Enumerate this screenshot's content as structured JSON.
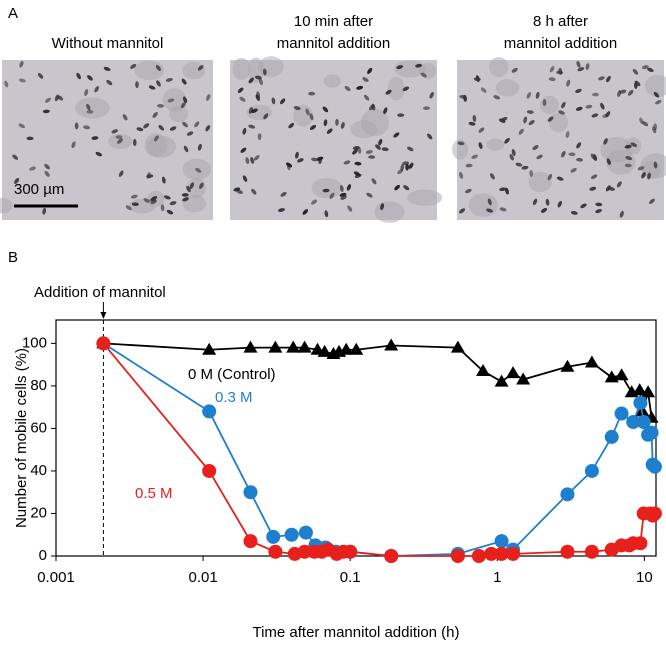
{
  "panel_a": {
    "label": "A",
    "scale_bar": "300 µm",
    "images": [
      {
        "caption": [
          "Without mannitol"
        ]
      },
      {
        "caption": [
          "10 min after",
          "mannitol addition"
        ]
      },
      {
        "caption": [
          "8 h after",
          "mannitol addition"
        ]
      }
    ]
  },
  "chart_data": {
    "type": "line",
    "panel_label": "B",
    "xlabel": "Time after mannitol addition (h)",
    "ylabel": "Number of mobile cells (%)",
    "xscale": "log",
    "xlim": [
      0.001,
      12
    ],
    "ylim": [
      0,
      111
    ],
    "xticks": [
      0.001,
      0.01,
      0.1,
      1,
      10
    ],
    "yticks": [
      0,
      20,
      40,
      60,
      80,
      100
    ],
    "event": {
      "label": "Addition of mannitol",
      "x": 0.0021
    },
    "series": [
      {
        "name": "0 M (Control)",
        "color": "#000000",
        "marker": "triangle",
        "x": [
          0.0021,
          0.011,
          0.021,
          0.031,
          0.041,
          0.049,
          0.06,
          0.067,
          0.077,
          0.084,
          0.094,
          0.11,
          0.19,
          0.54,
          0.8,
          1.07,
          1.28,
          1.5,
          3.0,
          4.4,
          6.0,
          7.0,
          8.2,
          9.3,
          9.7,
          10.6,
          11.2
        ],
        "values": [
          100,
          97,
          98,
          98,
          98,
          98,
          97,
          96,
          95,
          96,
          97,
          97,
          99,
          98,
          87,
          82,
          86,
          83,
          89,
          91,
          84,
          85,
          77,
          78,
          68,
          77,
          65
        ]
      },
      {
        "name": "0.3 M",
        "color": "#1f7fcf",
        "marker": "circle",
        "x": [
          0.0021,
          0.011,
          0.021,
          0.03,
          0.04,
          0.05,
          0.058,
          0.068,
          0.08,
          0.1,
          0.19,
          0.54,
          1.07,
          1.28,
          3.0,
          4.4,
          6.0,
          7.0,
          8.4,
          9.4,
          9.9,
          10.6,
          11.2,
          11.4,
          11.8
        ],
        "values": [
          100,
          68,
          30,
          9,
          10,
          11,
          5,
          4,
          2,
          2,
          0,
          1,
          7,
          3,
          29,
          40,
          56,
          67,
          63,
          72,
          63,
          57,
          58,
          43,
          42
        ]
      },
      {
        "name": "0.5 M",
        "color": "#e8201c",
        "marker": "circle",
        "x": [
          0.0021,
          0.011,
          0.021,
          0.031,
          0.042,
          0.049,
          0.057,
          0.064,
          0.071,
          0.081,
          0.09,
          0.1,
          0.19,
          0.54,
          0.75,
          0.91,
          1.07,
          1.28,
          3.0,
          4.4,
          6.0,
          7.0,
          7.9,
          8.4,
          9.4,
          9.9,
          11,
          11.4,
          11.8
        ],
        "values": [
          100,
          40,
          7,
          2,
          1,
          2,
          2,
          2,
          3,
          1,
          2,
          2,
          0,
          0,
          0,
          1,
          1,
          1,
          2,
          2,
          3,
          5,
          5,
          6,
          6,
          20,
          20,
          19,
          20
        ]
      }
    ]
  }
}
